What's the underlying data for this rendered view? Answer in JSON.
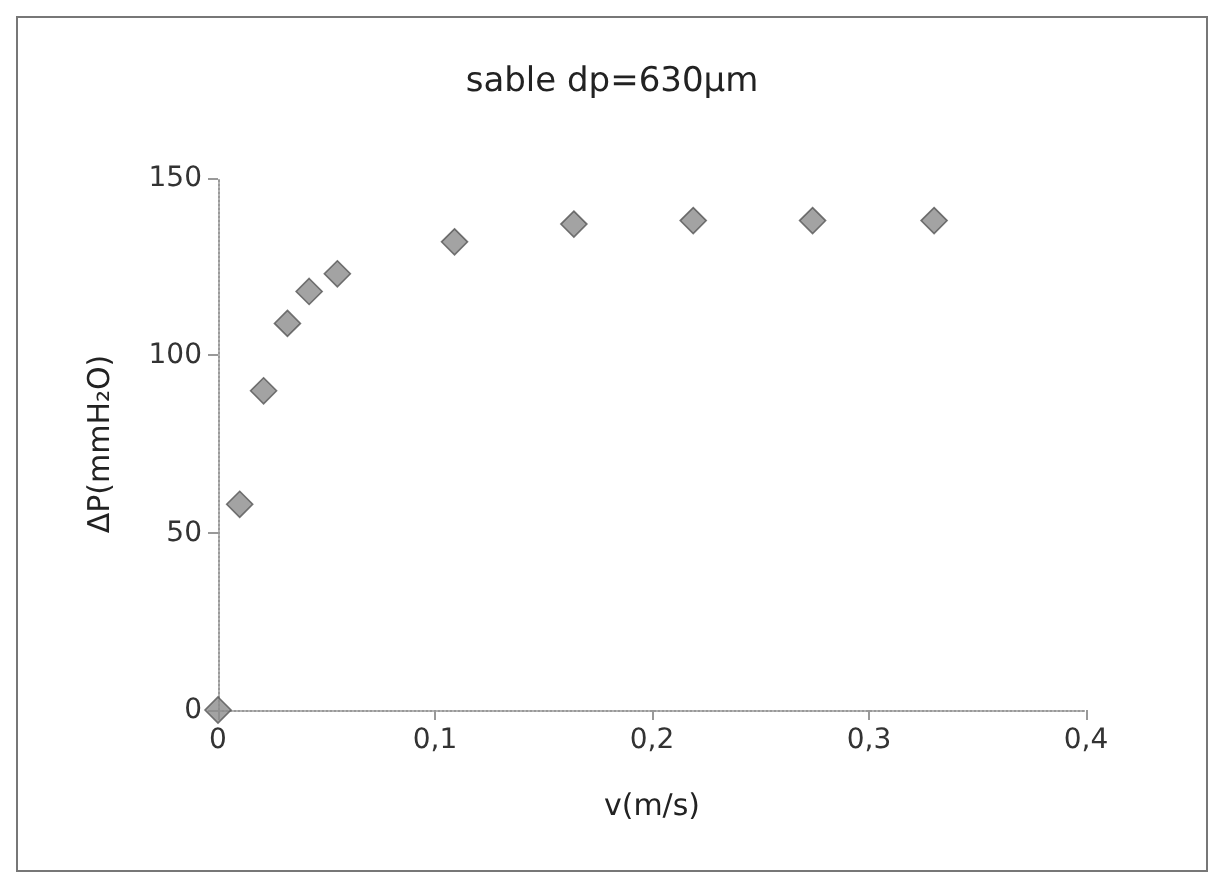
{
  "chart_data": {
    "type": "scatter",
    "title": "sable dp=630µm",
    "xlabel": "v(m/s)",
    "ylabel": "ΔP(mmH₂O)",
    "x": [
      0,
      0.01,
      0.021,
      0.032,
      0.042,
      0.055,
      0.109,
      0.164,
      0.219,
      0.274,
      0.33
    ],
    "series": [
      {
        "color": "#8c8c8c",
        "values": [
          0,
          58,
          90,
          109,
          118,
          123,
          132,
          137,
          138,
          138,
          138
        ]
      }
    ],
    "xlim": [
      0,
      0.4
    ],
    "xticks": [
      {
        "value": 0,
        "label": "0"
      },
      {
        "value": 0.1,
        "label": "0,1"
      },
      {
        "value": 0.2,
        "label": "0,2"
      },
      {
        "value": 0.3,
        "label": "0,3"
      },
      {
        "value": 0.4,
        "label": "0,4"
      }
    ],
    "ylim": [
      0,
      150
    ],
    "yticks": [
      0,
      50,
      100,
      150
    ],
    "marker": "diamond",
    "grid": false
  }
}
